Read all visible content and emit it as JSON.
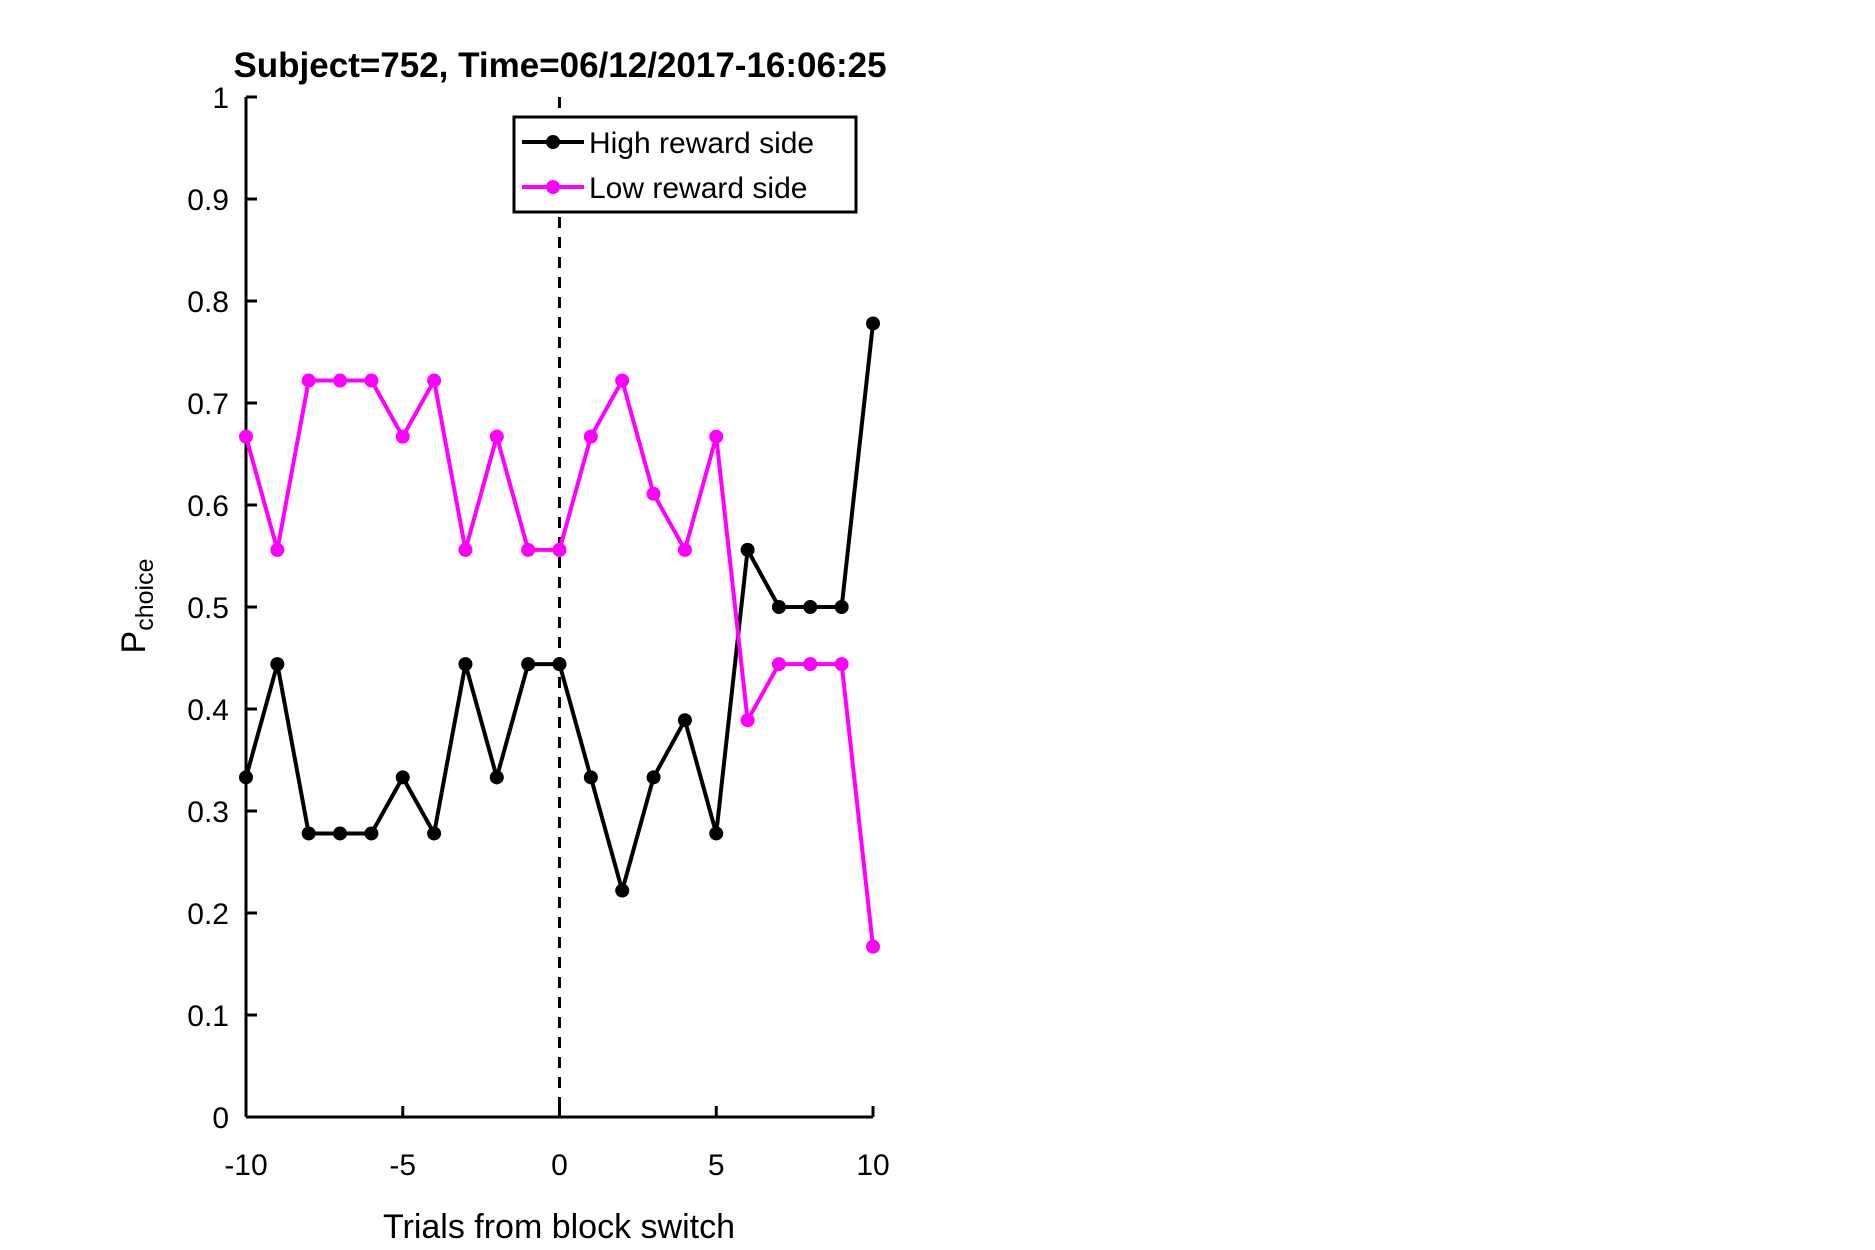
{
  "chart_data": {
    "type": "line",
    "title": "Subject=752, Time=06/12/2017-16:06:25",
    "xlabel": "Trials from block switch",
    "ylabel": "P",
    "ylabel_subscript": "choice",
    "xlim": [
      -10,
      10
    ],
    "ylim": [
      0,
      1
    ],
    "xticks": [
      -10,
      -5,
      0,
      5,
      10
    ],
    "yticks": [
      0,
      0.1,
      0.2,
      0.3,
      0.4,
      0.5,
      0.6,
      0.7,
      0.8,
      0.9,
      1
    ],
    "xtick_labels": [
      "-10",
      "-5",
      "0",
      "5",
      "10"
    ],
    "ytick_labels": [
      "0",
      "0.1",
      "0.2",
      "0.3",
      "0.4",
      "0.5",
      "0.6",
      "0.7",
      "0.8",
      "0.9",
      "1"
    ],
    "grid": false,
    "legend_position": "top-center",
    "vertical_line": {
      "x": 0,
      "style": "dashed",
      "color": "#000000"
    },
    "x": [
      -10,
      -9,
      -8,
      -7,
      -6,
      -5,
      -4,
      -3,
      -2,
      -1,
      0,
      1,
      2,
      3,
      4,
      5,
      6,
      7,
      8,
      9,
      10
    ],
    "series": [
      {
        "name": "High reward side",
        "color": "#000000",
        "values": [
          0.333,
          0.444,
          0.278,
          0.278,
          0.278,
          0.333,
          0.278,
          0.444,
          0.333,
          0.444,
          0.444,
          0.333,
          0.222,
          0.333,
          0.389,
          0.278,
          0.556,
          0.5,
          0.5,
          0.5,
          0.778
        ]
      },
      {
        "name": "Low reward side",
        "color": "#ff00ff",
        "values": [
          0.667,
          0.556,
          0.722,
          0.722,
          0.722,
          0.667,
          0.722,
          0.556,
          0.667,
          0.556,
          0.556,
          0.667,
          0.722,
          0.611,
          0.556,
          0.667,
          0.389,
          0.444,
          0.444,
          0.444,
          0.167
        ]
      }
    ]
  }
}
